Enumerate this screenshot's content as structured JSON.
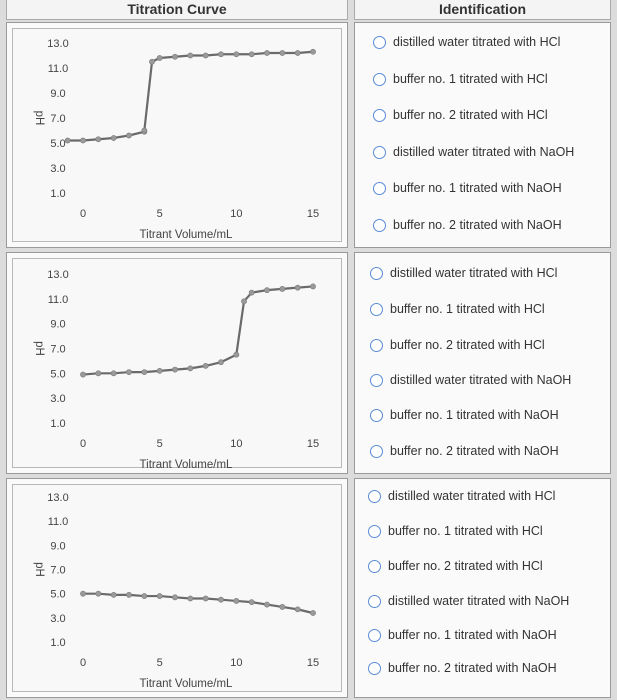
{
  "header": {
    "left_title": "Titration Curve",
    "right_title": "Identification"
  },
  "options": [
    "distilled water titrated with HCl",
    "buffer no. 1 titrated with HCl",
    "buffer no. 2 titrated with HCl",
    "distilled water titrated with NaOH",
    "buffer no. 1 titrated with NaOH",
    "buffer no. 2 titrated with NaOH"
  ],
  "chart_data": [
    {
      "type": "line",
      "xlabel": "Titrant Volume/mL",
      "ylabel": "pH",
      "yticks": [
        "13.0",
        "11.0",
        "9.0",
        "7.0",
        "5.0",
        "3.0",
        "1.0"
      ],
      "xticks": [
        "0",
        "5",
        "10",
        "15"
      ],
      "xlim": [
        0,
        15
      ],
      "ylim": [
        1,
        13
      ],
      "x": [
        -1,
        0,
        1,
        2,
        3,
        4,
        4,
        4.5,
        5,
        6,
        7,
        8,
        9,
        10,
        11,
        12,
        13,
        14,
        15
      ],
      "y": [
        5.2,
        5.2,
        5.3,
        5.4,
        5.6,
        5.9,
        6.0,
        11.5,
        11.8,
        11.9,
        12.0,
        12.0,
        12.1,
        12.1,
        12.1,
        12.2,
        12.2,
        12.2,
        12.3
      ]
    },
    {
      "type": "line",
      "xlabel": "Titrant Volume/mL",
      "ylabel": "pH",
      "yticks": [
        "13.0",
        "11.0",
        "9.0",
        "7.0",
        "5.0",
        "3.0",
        "1.0"
      ],
      "xticks": [
        "0",
        "5",
        "10",
        "15"
      ],
      "xlim": [
        0,
        15
      ],
      "ylim": [
        1,
        13
      ],
      "x": [
        0,
        1,
        2,
        3,
        4,
        5,
        6,
        7,
        8,
        9,
        10,
        10.5,
        11,
        12,
        13,
        14,
        15
      ],
      "y": [
        4.9,
        5.0,
        5.0,
        5.1,
        5.1,
        5.2,
        5.3,
        5.4,
        5.6,
        5.9,
        6.5,
        10.8,
        11.5,
        11.7,
        11.8,
        11.9,
        12.0
      ]
    },
    {
      "type": "line",
      "xlabel": "Titrant Volume/mL",
      "ylabel": "pH",
      "yticks": [
        "13.0",
        "11.0",
        "9.0",
        "7.0",
        "5.0",
        "3.0",
        "1.0"
      ],
      "xticks": [
        "0",
        "5",
        "10",
        "15"
      ],
      "xlim": [
        0,
        15
      ],
      "ylim": [
        1,
        13
      ],
      "x": [
        0,
        1,
        2,
        3,
        4,
        5,
        6,
        7,
        8,
        9,
        10,
        11,
        12,
        13,
        14,
        15
      ],
      "y": [
        5.0,
        5.0,
        4.9,
        4.9,
        4.8,
        4.8,
        4.7,
        4.6,
        4.6,
        4.5,
        4.4,
        4.3,
        4.1,
        3.9,
        3.7,
        3.4
      ]
    }
  ]
}
